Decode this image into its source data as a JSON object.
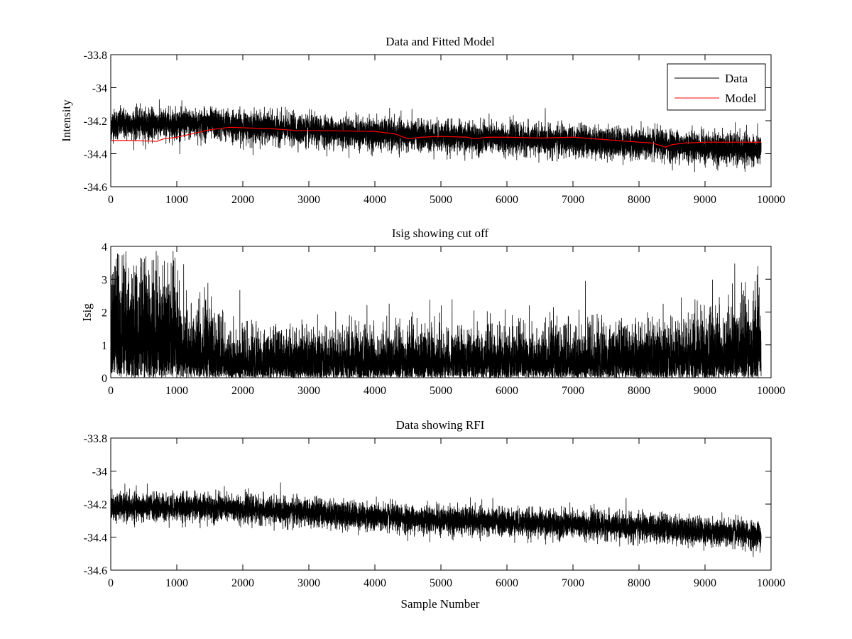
{
  "figure": {
    "background": "#ffffff"
  },
  "chart_data": [
    {
      "type": "line",
      "title": "Data and Fitted Model",
      "xlabel": "",
      "ylabel": "Intensity",
      "xlim": [
        0,
        10000
      ],
      "ylim": [
        -34.6,
        -33.8
      ],
      "x_ticks": [
        0,
        1000,
        2000,
        3000,
        4000,
        5000,
        6000,
        7000,
        8000,
        9000,
        10000
      ],
      "x_tick_labels": [
        "0",
        "1000",
        "2000",
        "3000",
        "4000",
        "5000",
        "6000",
        "7000",
        "8000",
        "9000",
        "10000"
      ],
      "y_ticks": [
        -34.6,
        -34.4,
        -34.2,
        -34,
        -33.8
      ],
      "y_tick_labels": [
        "-34.6",
        "-34.4",
        "-34.2",
        "-34",
        "-33.8"
      ],
      "grid": false,
      "legend": {
        "placement": "top-right",
        "entries": [
          "Data",
          "Model"
        ]
      },
      "series": [
        {
          "name": "Data",
          "color": "#000000",
          "kind": "noisy",
          "n_points": 9850,
          "x_range": [
            0,
            9850
          ],
          "trend_x": [
            0,
            1500,
            3000,
            4500,
            6000,
            7500,
            8500,
            9850
          ],
          "trend_y": [
            -34.22,
            -34.22,
            -34.26,
            -34.29,
            -34.31,
            -34.33,
            -34.35,
            -34.38
          ],
          "noise_std": 0.045
        },
        {
          "name": "Model",
          "color": "#ff0000",
          "kind": "line",
          "x": [
            0,
            300,
            700,
            800,
            1000,
            1500,
            1800,
            2500,
            2800,
            3200,
            4000,
            4300,
            4500,
            4700,
            5000,
            5400,
            5500,
            5700,
            6000,
            6500,
            7000,
            7500,
            8000,
            8200,
            8400,
            8500,
            8700,
            9000,
            9500,
            9850
          ],
          "y": [
            -34.32,
            -34.32,
            -34.325,
            -34.31,
            -34.3,
            -34.255,
            -34.24,
            -34.25,
            -34.26,
            -34.26,
            -34.265,
            -34.28,
            -34.31,
            -34.3,
            -34.295,
            -34.3,
            -34.31,
            -34.3,
            -34.3,
            -34.305,
            -34.3,
            -34.315,
            -34.33,
            -34.335,
            -34.36,
            -34.345,
            -34.335,
            -34.33,
            -34.33,
            -34.33
          ]
        }
      ]
    },
    {
      "type": "line",
      "title": "Isig showing cut off",
      "xlabel": "",
      "ylabel": "Isig",
      "xlim": [
        0,
        10000
      ],
      "ylim": [
        0,
        4
      ],
      "x_ticks": [
        0,
        1000,
        2000,
        3000,
        4000,
        5000,
        6000,
        7000,
        8000,
        9000,
        10000
      ],
      "x_tick_labels": [
        "0",
        "1000",
        "2000",
        "3000",
        "4000",
        "5000",
        "6000",
        "7000",
        "8000",
        "9000",
        "10000"
      ],
      "y_ticks": [
        0,
        1,
        2,
        3,
        4
      ],
      "y_tick_labels": [
        "0",
        "1",
        "2",
        "3",
        "4"
      ],
      "grid": false,
      "series": [
        {
          "name": "Isig",
          "color": "#000000",
          "kind": "isig",
          "n_points": 9850,
          "x_range": [
            0,
            9850
          ],
          "level_x": [
            0,
            500,
            900,
            1100,
            1600,
            1800,
            3500,
            5000,
            6500,
            8000,
            9000,
            9500,
            9850
          ],
          "level_y": [
            1.8,
            1.8,
            1.6,
            1.1,
            0.9,
            0.65,
            0.7,
            0.7,
            0.7,
            0.75,
            0.9,
            1.1,
            1.2
          ],
          "max_value": 3.85
        }
      ]
    },
    {
      "type": "line",
      "title": "Data showing RFI",
      "xlabel": "Sample Number",
      "ylabel": "",
      "xlim": [
        0,
        10000
      ],
      "ylim": [
        -34.6,
        -33.8
      ],
      "x_ticks": [
        0,
        1000,
        2000,
        3000,
        4000,
        5000,
        6000,
        7000,
        8000,
        9000,
        10000
      ],
      "x_tick_labels": [
        "0",
        "1000",
        "2000",
        "3000",
        "4000",
        "5000",
        "6000",
        "7000",
        "8000",
        "9000",
        "10000"
      ],
      "y_ticks": [
        -34.6,
        -34.4,
        -34.2,
        -34,
        -33.8
      ],
      "y_tick_labels": [
        "-34.6",
        "-34.4",
        "-34.2",
        "-34",
        "-33.8"
      ],
      "grid": false,
      "series": [
        {
          "name": "RFI data",
          "color": "#000000",
          "kind": "noisy",
          "n_points": 9850,
          "x_range": [
            0,
            9850
          ],
          "trend_x": [
            0,
            1500,
            3000,
            4500,
            6000,
            7500,
            8500,
            9850
          ],
          "trend_y": [
            -34.22,
            -34.22,
            -34.25,
            -34.29,
            -34.31,
            -34.33,
            -34.35,
            -34.39
          ],
          "noise_std": 0.04
        }
      ]
    }
  ]
}
